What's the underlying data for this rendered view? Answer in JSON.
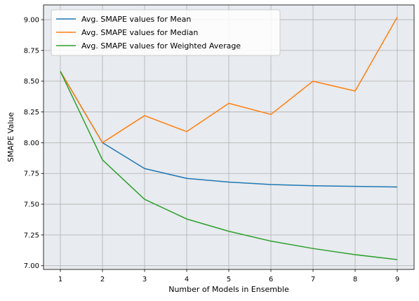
{
  "chart_data": {
    "type": "line",
    "title": "",
    "xlabel": "Number of Models in Ensemble",
    "ylabel": "SMAPE Value",
    "x": [
      1,
      2,
      3,
      4,
      5,
      6,
      7,
      8,
      9
    ],
    "xticks": [
      "1",
      "2",
      "3",
      "4",
      "5",
      "6",
      "7",
      "8",
      "9"
    ],
    "yticks": [
      "7.00",
      "7.25",
      "7.50",
      "7.75",
      "8.00",
      "8.25",
      "8.50",
      "8.75",
      "9.00"
    ],
    "xlim": [
      0.6,
      9.4
    ],
    "ylim": [
      6.97,
      9.12
    ],
    "grid": true,
    "legend_position": "top-left",
    "background_color": "#e8ebef",
    "grid_color": "#b0b0b0",
    "series": [
      {
        "name": "Avg. SMAPE values for Mean",
        "color": "#1f77b4",
        "values": [
          8.58,
          8.0,
          7.79,
          7.71,
          7.68,
          7.66,
          7.65,
          7.645,
          7.64
        ]
      },
      {
        "name": "Avg. SMAPE values for Median",
        "color": "#ff7f0e",
        "values": [
          8.58,
          8.0,
          8.22,
          8.09,
          8.32,
          8.23,
          8.5,
          8.42,
          9.02
        ]
      },
      {
        "name": "Avg. SMAPE values for Weighted Average",
        "color": "#2ca02c",
        "values": [
          8.58,
          7.86,
          7.54,
          7.38,
          7.28,
          7.2,
          7.14,
          7.09,
          7.05
        ]
      }
    ]
  }
}
